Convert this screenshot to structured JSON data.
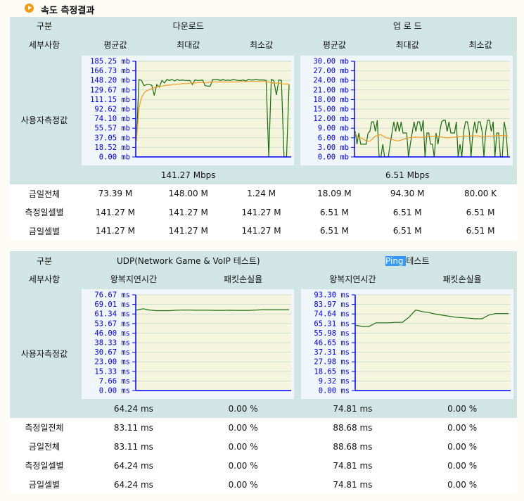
{
  "title": "속도 측정결과",
  "speed": {
    "h_category": "구분",
    "h_download": "다운로드",
    "h_upload": "업 로 드",
    "h_detail": "세부사항",
    "cols": [
      "평균값",
      "최대값",
      "최소값",
      "평균값",
      "최대값",
      "최소값"
    ],
    "row_user": "사용자측정값",
    "avg_download": "141.27 Mbps",
    "avg_upload": "6.51 Mbps",
    "rows": [
      {
        "label": "금일전체",
        "values": [
          "73.39 M",
          "148.00 M",
          "1.24 M",
          "18.09 M",
          "94.30 M",
          "80.00 K"
        ]
      },
      {
        "label": "측정일셀별",
        "values": [
          "141.27 M",
          "141.27 M",
          "141.27 M",
          "6.51 M",
          "6.51 M",
          "6.51 M"
        ]
      },
      {
        "label": "금일셀별",
        "values": [
          "141.27 M",
          "141.27 M",
          "141.27 M",
          "6.51 M",
          "6.51 M",
          "6.51 M"
        ]
      }
    ]
  },
  "latency": {
    "h_category": "구분",
    "h_udp": "UDP(Network Game & VoIP 테스트)",
    "h_ping_sel": "Ping ",
    "h_ping_rest": "테스트",
    "h_detail": "세부사항",
    "cols": [
      "왕복지연시간",
      "패킷손실율",
      "왕복지연시간",
      "패킷손실율"
    ],
    "row_user": "사용자측정값",
    "avg": [
      "64.24 ms",
      "0.00 %",
      "74.81 ms",
      "0.00 %"
    ],
    "rows": [
      {
        "label": "측정일전체",
        "values": [
          "83.11 ms",
          "0.00 %",
          "88.68 ms",
          "0.00 %"
        ]
      },
      {
        "label": "금일전체",
        "values": [
          "83.11 ms",
          "0.00 %",
          "88.68 ms",
          "0.00 %"
        ]
      },
      {
        "label": "측정일셀별",
        "values": [
          "64.24 ms",
          "0.00 %",
          "74.81 ms",
          "0.00 %"
        ]
      },
      {
        "label": "금일셀별",
        "values": [
          "64.24 ms",
          "0.00 %",
          "74.81 ms",
          "0.00 %"
        ]
      }
    ]
  },
  "colors": {
    "header": "#d1e5e5",
    "plot_bg": "#f5f4dc",
    "axis": "#0000ff",
    "series": "#1a6e12",
    "average": "#f59a23",
    "loss": "#cc3355"
  },
  "chart_data": [
    {
      "type": "line",
      "id": "download",
      "unit": "mb",
      "ylim": [
        0,
        185.25
      ],
      "ticks": [
        "0.00",
        "18.52",
        "37.05",
        "55.57",
        "74.10",
        "92.62",
        "111.15",
        "129.67",
        "148.20",
        "166.73",
        "185.25"
      ],
      "series": [
        {
          "role": "measured",
          "values": [
            30,
            150,
            148,
            138,
            140,
            140,
            139,
            119,
            140,
            135,
            148,
            143,
            150,
            148,
            150,
            147,
            150,
            148,
            149,
            148,
            148,
            148,
            140,
            149,
            148,
            148,
            149,
            138,
            137,
            137,
            150,
            150,
            150,
            148,
            150,
            148,
            149,
            148,
            150,
            149,
            148,
            148,
            149,
            147,
            150,
            149,
            149,
            150,
            149,
            149,
            149,
            148,
            0,
            150,
            148,
            120,
            149,
            148,
            0,
            0,
            140
          ]
        },
        {
          "role": "average",
          "values": [
            30,
            95,
            115,
            124,
            128,
            130,
            132,
            134,
            135,
            136,
            137,
            138,
            139,
            139,
            140,
            140,
            141,
            141,
            142,
            142,
            142,
            143,
            143,
            143,
            144,
            144,
            144,
            144,
            144,
            145,
            145,
            145,
            145,
            145,
            145,
            145,
            145,
            145,
            145,
            145,
            145,
            146,
            146,
            146,
            146,
            146,
            146,
            146,
            146,
            146,
            146,
            146,
            145,
            143,
            143,
            143,
            143,
            142,
            141,
            141,
            141
          ]
        }
      ]
    },
    {
      "type": "line",
      "id": "upload",
      "unit": "mb",
      "ylim": [
        0,
        30
      ],
      "ticks": [
        "0.00",
        "3.00",
        "6.00",
        "9.00",
        "12.00",
        "15.00",
        "18.00",
        "21.00",
        "24.00",
        "27.00",
        "30.00"
      ],
      "series": [
        {
          "role": "measured",
          "values": [
            8,
            4,
            7.5,
            4,
            4,
            4,
            4,
            7.5,
            8,
            11,
            11,
            8,
            11.5,
            0,
            0,
            4,
            0,
            0,
            0,
            4,
            7.5,
            11,
            8,
            11,
            8,
            11,
            7.5,
            7.5,
            7.5,
            0,
            4,
            7.5,
            11,
            8,
            11,
            11,
            8,
            11.5,
            0,
            7.5,
            7.5,
            4,
            4,
            0,
            7.5,
            4,
            8,
            11,
            11.5,
            11.5,
            8,
            11,
            7.5,
            7.5,
            7.5,
            11,
            0,
            4,
            0,
            8,
            11,
            11,
            8,
            0,
            7.5,
            11,
            7.5,
            11,
            11,
            8,
            0,
            8,
            11.5,
            11.5,
            8,
            11,
            0,
            7.5,
            7.5,
            0,
            0,
            11,
            8,
            0
          ]
        },
        {
          "role": "average",
          "values": [
            7.5,
            6,
            6,
            5.5,
            5,
            4.9,
            5.5,
            6.5,
            6.7,
            7,
            6.5,
            6,
            5.8,
            5.5,
            5.2,
            5,
            5.2,
            5.5,
            5.8,
            6,
            6.1,
            6.2,
            6.2,
            6.1,
            6.2,
            6.3,
            6.4,
            6.5,
            6.5,
            6.5,
            6.4,
            6.2,
            6,
            6,
            6.1,
            6.2,
            6.3,
            6.4,
            6.5,
            6.5,
            6.5,
            6.6,
            6.6,
            6.6,
            6.5,
            6.4,
            6.4,
            6.5,
            6.5,
            6.6,
            6.6,
            6.7,
            6.7,
            6.6,
            6.5
          ]
        }
      ]
    },
    {
      "type": "line",
      "id": "udp",
      "unit": "ms",
      "ylim": [
        0,
        76.67
      ],
      "ticks": [
        "0.00",
        "7.66",
        "15.33",
        "23.00",
        "30.67",
        "38.33",
        "46.00",
        "53.67",
        "61.34",
        "69.01",
        "76.67"
      ],
      "series": [
        {
          "role": "round-trip",
          "values": [
            64.5,
            65.5,
            64.5,
            64,
            64,
            64,
            64.3,
            64.5,
            64.5,
            64.3,
            64.3,
            64.3,
            64.2,
            64.2,
            64.3,
            64.2,
            64.2,
            64.2,
            64.5,
            64.8,
            64.8,
            64.8,
            64.8,
            64.8
          ]
        },
        {
          "role": "loss",
          "values": [
            0,
            0
          ]
        }
      ]
    },
    {
      "type": "line",
      "id": "ping",
      "unit": "ms",
      "ylim": [
        0,
        93.3
      ],
      "ticks": [
        "0.00",
        "9.32",
        "18.65",
        "27.98",
        "37.31",
        "46.65",
        "55.98",
        "65.31",
        "74.64",
        "83.97",
        "93.30"
      ],
      "series": [
        {
          "role": "round-trip",
          "values": [
            63.5,
            62.5,
            62.5,
            66,
            66,
            66,
            66.5,
            66.5,
            71.5,
            78.5,
            77,
            76,
            74.5,
            73.5,
            72.5,
            71.5,
            71,
            70.5,
            70,
            70,
            73.5,
            75,
            75,
            75
          ]
        },
        {
          "role": "loss",
          "values": [
            0,
            0
          ]
        }
      ]
    }
  ]
}
